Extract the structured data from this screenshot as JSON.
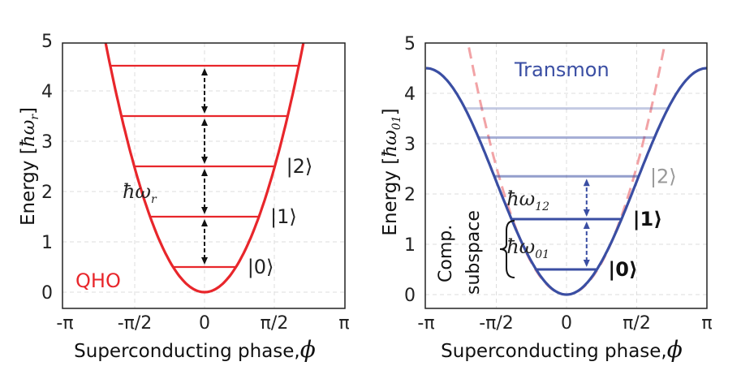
{
  "chart_data": [
    {
      "type": "line",
      "name": "qho",
      "title_annotation": "QHO",
      "xlim": [
        -3.1416,
        3.1416
      ],
      "ylim": [
        -0.3,
        4.95
      ],
      "xticks": [
        -3.1416,
        -1.5708,
        0,
        1.5708,
        3.1416
      ],
      "xtick_labels": [
        "-π",
        "-π/2",
        "0",
        "π/2",
        "π"
      ],
      "yticks": [
        0,
        1,
        2,
        3,
        4,
        5
      ],
      "ytick_labels": [
        "0",
        "1",
        "2",
        "3",
        "4",
        "5"
      ],
      "xlabel": {
        "text": "Superconducting phase,",
        "symbol": "ϕ"
      },
      "ylabel": {
        "prefix": "Energy [",
        "symbol": "ħω",
        "sub": "r",
        "suffix": "]"
      },
      "grid": true,
      "potential": {
        "formula": "E = phi^2",
        "coef": 1.0,
        "color": "#e8262b"
      },
      "levels": [
        {
          "energy": 0.5,
          "label": "|0⟩",
          "opacity": 1
        },
        {
          "energy": 1.5,
          "label": "|1⟩",
          "opacity": 1
        },
        {
          "energy": 2.5,
          "label": "|2⟩",
          "opacity": 1
        },
        {
          "energy": 3.5,
          "label": "",
          "opacity": 1
        },
        {
          "energy": 4.5,
          "label": "",
          "opacity": 1
        }
      ],
      "level_color": "#e8262b",
      "arrows": {
        "x": 0,
        "color": "#111111",
        "pairs": [
          [
            0.5,
            1.5
          ],
          [
            1.5,
            2.5
          ],
          [
            2.5,
            3.5
          ],
          [
            3.5,
            4.5
          ]
        ]
      },
      "annotations": [
        {
          "symbol": "ħω",
          "sub": "r",
          "x": -0.75,
          "y": 2.0
        }
      ]
    },
    {
      "type": "line",
      "name": "transmon",
      "title_annotation": "Transmon",
      "xlim": [
        -3.1416,
        3.1416
      ],
      "ylim": [
        -0.3,
        4.95
      ],
      "xticks": [
        -3.1416,
        -1.5708,
        0,
        1.5708,
        3.1416
      ],
      "xtick_labels": [
        "-π",
        "-π/2",
        "0",
        "π/2",
        "π"
      ],
      "yticks": [
        0,
        1,
        2,
        3,
        4,
        5
      ],
      "ytick_labels": [
        "0",
        "1",
        "2",
        "3",
        "4",
        "5"
      ],
      "xlabel": {
        "text": "Superconducting phase,",
        "symbol": "ϕ"
      },
      "ylabel": {
        "prefix": "Energy [",
        "symbol": "ħω",
        "sub": "01",
        "suffix": "]"
      },
      "grid": true,
      "potential": {
        "formula": "E = 4.5(1-cos phi)/2",
        "amplitude": 4.5,
        "color": "#3a4ea3"
      },
      "reference_parabola": {
        "formula": "E = phi^2",
        "coef": 1.03,
        "color": "#f2a3a6",
        "style": "dashed"
      },
      "levels": [
        {
          "energy": 0.5,
          "label": "|0⟩",
          "opacity": 1,
          "bold": true
        },
        {
          "energy": 1.5,
          "label": "|1⟩",
          "opacity": 1,
          "bold": true
        },
        {
          "energy": 2.35,
          "label": "|2⟩",
          "opacity": 0.55,
          "bold": false
        },
        {
          "energy": 3.12,
          "label": "",
          "opacity": 0.45
        },
        {
          "energy": 3.7,
          "label": "",
          "opacity": 0.3
        }
      ],
      "level_color": "#3a4ea3",
      "arrows": {
        "x": 0.45,
        "color": "#3a4ea3",
        "pairs": [
          [
            0.5,
            1.5
          ],
          [
            1.5,
            2.35
          ]
        ]
      },
      "annotations": [
        {
          "symbol": "ħω",
          "sub": "12",
          "x": -0.25,
          "y": 1.9
        },
        {
          "symbol": "ħω",
          "sub": "01",
          "x": -0.25,
          "y": 0.95
        }
      ],
      "brace_label": [
        "Comp.",
        "subspace"
      ]
    }
  ]
}
